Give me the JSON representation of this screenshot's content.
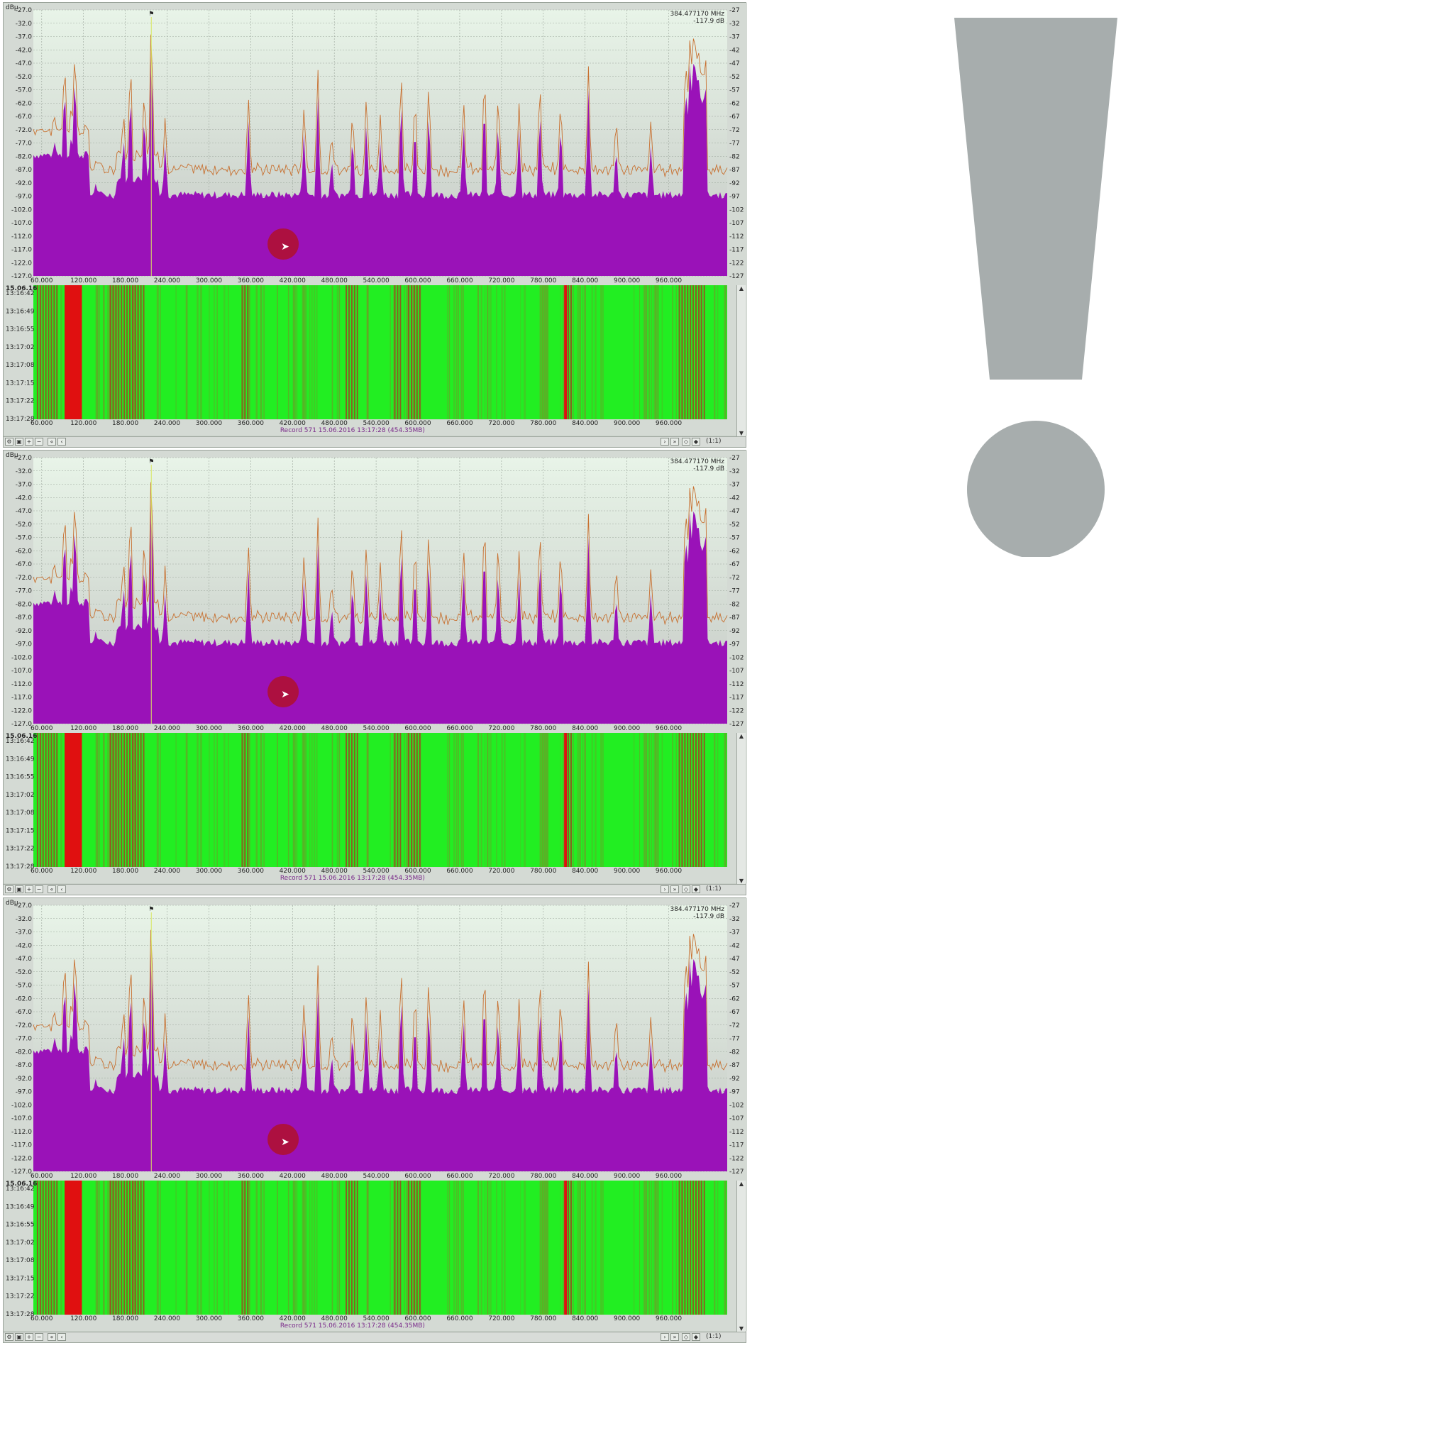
{
  "panels": [
    {
      "id": "frame-1",
      "spectrum": {
        "y_ticks": [
          "-27.0",
          "-32.0",
          "-37.0",
          "-42.0",
          "-47.0",
          "-52.0",
          "-57.0",
          "-62.0",
          "-67.0",
          "-72.0",
          "-77.0",
          "-82.0",
          "-87.0",
          "-92.0",
          "-97.0",
          "-102.0",
          "-107.0",
          "-112.0",
          "-117.0",
          "-122.0",
          "-127.0"
        ],
        "y_ticks_right": [
          "-27",
          "-32",
          "-37",
          "-42",
          "-47",
          "-52",
          "-57",
          "-62",
          "-67",
          "-72",
          "-77",
          "-82",
          "-87",
          "-92",
          "-97",
          "-102",
          "-107",
          "-112",
          "-117",
          "-122",
          "-127"
        ],
        "x_ticks": [
          "60.000",
          "120.000",
          "180.000",
          "240.000",
          "300.000",
          "360.000",
          "420.000",
          "480.000",
          "540.000",
          "600.000",
          "660.000",
          "720.000",
          "780.000",
          "840.000",
          "900.000",
          "960.000"
        ],
        "marker_readout_freq": "384.477170 MHz",
        "marker_readout_level": "-117.9 dB",
        "unit_label": "dBµ",
        "colors": {
          "fill": "#9a12b8",
          "trace": "#c87030",
          "bg_top": "#e8f4e8",
          "bg_bottom": "#c4c8c4",
          "cursor": "#b0102a"
        }
      },
      "waterfall": {
        "date": "15.06.16",
        "time_ticks": [
          "13:16:42",
          "13:16:49",
          "13:16:55",
          "13:17:02",
          "13:17:08",
          "13:17:15",
          "13:17:22",
          "13:17:28"
        ],
        "x_ticks": [
          "60.000",
          "120.000",
          "180.000",
          "240.000",
          "300.000",
          "360.000",
          "420.000",
          "480.000",
          "540.000",
          "600.000",
          "660.000",
          "720.000",
          "780.000",
          "840.000",
          "900.000",
          "960.000"
        ],
        "record_text": "Record 571 15.06.2016 13:17:28 (454.35MB)",
        "colors": {
          "base": "#22ee22",
          "hot": "#e01010",
          "warm": "#a04020"
        }
      },
      "statusbar": {
        "scale_label": "(1:1)"
      }
    },
    {
      "id": "frame-2",
      "spectrum": {
        "y_ticks": [
          "-27.0",
          "-32.0",
          "-37.0",
          "-42.0",
          "-47.0",
          "-52.0",
          "-57.0",
          "-62.0",
          "-67.0",
          "-72.0",
          "-77.0",
          "-82.0",
          "-87.0",
          "-92.0",
          "-97.0",
          "-102.0",
          "-107.0",
          "-112.0",
          "-117.0",
          "-122.0",
          "-127.0"
        ],
        "y_ticks_right": [
          "-27",
          "-32",
          "-37",
          "-42",
          "-47",
          "-52",
          "-57",
          "-62",
          "-67",
          "-72",
          "-77",
          "-82",
          "-87",
          "-92",
          "-97",
          "-102",
          "-107",
          "-112",
          "-117",
          "-122",
          "-127"
        ],
        "x_ticks": [
          "60.000",
          "120.000",
          "180.000",
          "240.000",
          "300.000",
          "360.000",
          "420.000",
          "480.000",
          "540.000",
          "600.000",
          "660.000",
          "720.000",
          "780.000",
          "840.000",
          "900.000",
          "960.000"
        ],
        "marker_readout_freq": "384.477170 MHz",
        "marker_readout_level": "-117.9 dB",
        "unit_label": "dBµ",
        "colors": {
          "fill": "#9a12b8",
          "trace": "#c87030",
          "bg_top": "#e8f4e8",
          "bg_bottom": "#c4c8c4",
          "cursor": "#b0102a"
        }
      },
      "waterfall": {
        "date": "15.06.16",
        "time_ticks": [
          "13:16:42",
          "13:16:49",
          "13:16:55",
          "13:17:02",
          "13:17:08",
          "13:17:15",
          "13:17:22",
          "13:17:28"
        ],
        "x_ticks": [
          "60.000",
          "120.000",
          "180.000",
          "240.000",
          "300.000",
          "360.000",
          "420.000",
          "480.000",
          "540.000",
          "600.000",
          "660.000",
          "720.000",
          "780.000",
          "840.000",
          "900.000",
          "960.000"
        ],
        "record_text": "Record 571 15.06.2016 13:17:28 (454.35MB)",
        "colors": {
          "base": "#22ee22",
          "hot": "#e01010",
          "warm": "#a04020"
        }
      },
      "statusbar": {
        "scale_label": "(1:1)"
      }
    },
    {
      "id": "frame-3",
      "spectrum": {
        "y_ticks": [
          "-27.0",
          "-32.0",
          "-37.0",
          "-42.0",
          "-47.0",
          "-52.0",
          "-57.0",
          "-62.0",
          "-67.0",
          "-72.0",
          "-77.0",
          "-82.0",
          "-87.0",
          "-92.0",
          "-97.0",
          "-102.0",
          "-107.0",
          "-112.0",
          "-117.0",
          "-122.0",
          "-127.0"
        ],
        "y_ticks_right": [
          "-27",
          "-32",
          "-37",
          "-42",
          "-47",
          "-52",
          "-57",
          "-62",
          "-67",
          "-72",
          "-77",
          "-82",
          "-87",
          "-92",
          "-97",
          "-102",
          "-107",
          "-112",
          "-117",
          "-122",
          "-127"
        ],
        "x_ticks": [
          "60.000",
          "120.000",
          "180.000",
          "240.000",
          "300.000",
          "360.000",
          "420.000",
          "480.000",
          "540.000",
          "600.000",
          "660.000",
          "720.000",
          "780.000",
          "840.000",
          "900.000",
          "960.000"
        ],
        "marker_readout_freq": "384.477170 MHz",
        "marker_readout_level": "-117.9 dB",
        "unit_label": "dBµ",
        "colors": {
          "fill": "#9a12b8",
          "trace": "#c87030",
          "bg_top": "#e8f4e8",
          "bg_bottom": "#c4c8c4",
          "cursor": "#b0102a"
        }
      },
      "waterfall": {
        "date": "15.06.16",
        "time_ticks": [
          "13:16:42",
          "13:16:49",
          "13:16:55",
          "13:17:02",
          "13:17:08",
          "13:17:15",
          "13:17:22",
          "13:17:28"
        ],
        "x_ticks": [
          "60.000",
          "120.000",
          "180.000",
          "240.000",
          "300.000",
          "360.000",
          "420.000",
          "480.000",
          "540.000",
          "600.000",
          "660.000",
          "720.000",
          "780.000",
          "840.000",
          "900.000",
          "960.000"
        ],
        "record_text": "Record 571 15.06.2016 13:17:28 (454.35MB)",
        "colors": {
          "base": "#22ee22",
          "hot": "#e01010",
          "warm": "#a04020"
        }
      },
      "statusbar": {
        "scale_label": "(1:1)"
      }
    }
  ],
  "warning_graphic": {
    "icon": "exclamation-icon",
    "color": "#a7adad"
  }
}
